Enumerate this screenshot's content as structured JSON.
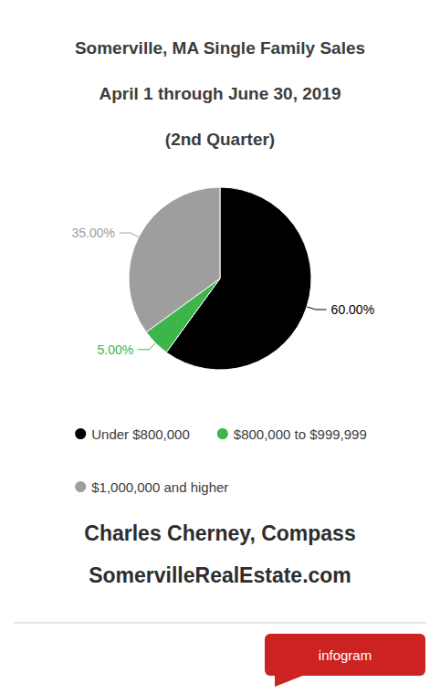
{
  "chart_data": {
    "type": "pie",
    "title": "Somerville, MA Single Family Sales\nApril 1 through June 30, 2019\n(2nd Quarter)",
    "categories": [
      "Under $800,000",
      "$800,000 to $999,999",
      "$1,000,000 and higher"
    ],
    "values": [
      60.0,
      5.0,
      35.0
    ],
    "value_labels": [
      "60.00%",
      "5.00%",
      "35.00%"
    ],
    "colors": [
      "#000000",
      "#3cb54a",
      "#9e9e9e"
    ],
    "data_labels": true,
    "legend": "bottom",
    "annotations": [
      "Charles Cherney, Compass",
      "SomervilleRealEstate.com",
      "infogram"
    ]
  }
}
